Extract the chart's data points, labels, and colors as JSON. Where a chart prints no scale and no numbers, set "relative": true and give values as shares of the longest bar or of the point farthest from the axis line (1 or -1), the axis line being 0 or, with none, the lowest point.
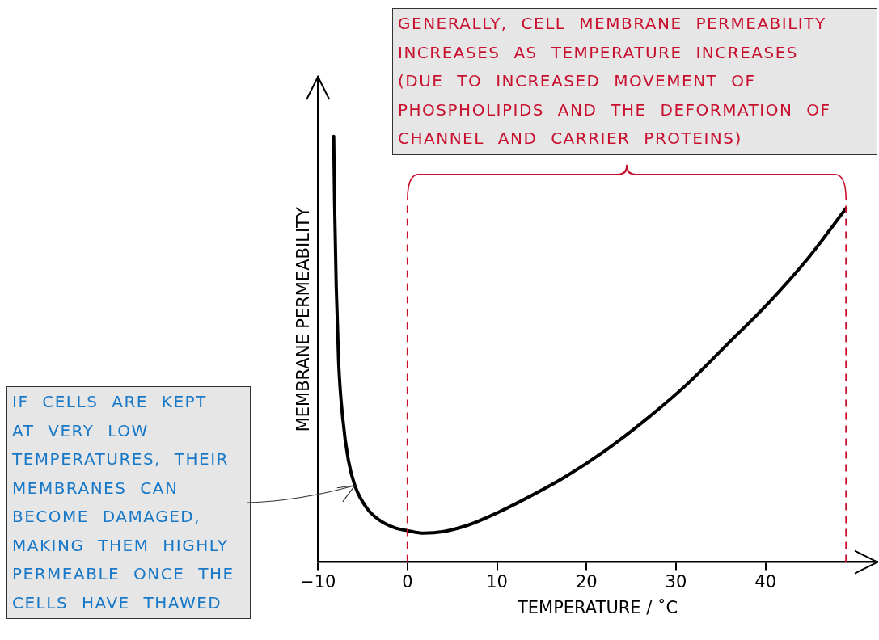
{
  "chart_data": {
    "type": "line",
    "relative": true,
    "xlabel": "TEMPERATURE / ˚C",
    "ylabel": "MEMBRANE PERMEABILITY",
    "xlim": [
      -10,
      52.5
    ],
    "xticks": [
      {
        "value": -10,
        "label": "−10"
      },
      0,
      10,
      20,
      30,
      40
    ],
    "x": [
      -8.24,
      -8.14,
      -7.96,
      -7.69,
      -7.24,
      -6.61,
      -5.88,
      -4.52,
      -3.17,
      -1.36,
      0,
      1.81,
      4.07,
      6.79,
      9.95,
      13.1,
      17.6,
      22.1,
      26.7,
      31.2,
      35.7,
      40.3,
      44.8,
      49
    ],
    "series": [
      {
        "color": "#000000",
        "values": [
          1,
          0.84,
          0.65,
          0.47,
          0.34,
          0.24,
          0.18,
          0.126,
          0.099,
          0.08,
          0.074,
          0.068,
          0.072,
          0.087,
          0.115,
          0.148,
          0.2,
          0.262,
          0.336,
          0.417,
          0.511,
          0.608,
          0.715,
          0.831
        ]
      }
    ],
    "ref_lines": [
      {
        "axis": "x",
        "value": 0,
        "color": "#c8102e",
        "line_style": "dashed"
      },
      {
        "axis": "x",
        "value": 49,
        "color": "#c8102e",
        "line_style": "dashed"
      }
    ],
    "grid": false,
    "legend": false,
    "marker": "none",
    "line_style": "solid",
    "annotations": [
      "GENERALLY, CELL MEMBRANE PERMEABILITY INCREASES AS TEMPERATURE INCREASES (DUE TO INCREASED MOVEMENT OF PHOSPHOLIPIDS AND THE DEFORMATION OF CHANNEL AND CARRIER PROTEINS)",
      {
        "text": "IF CELLS ARE KEPT AT VERY LOW TEMPERATURES, THEIR MEMBRANES CAN BECOME DAMAGED, MAKING THEM HIGHLY PERMEABLE ONCE THE CELLS HAVE THAWED",
        "x": -5.88,
        "y": 0.18
      }
    ]
  }
}
